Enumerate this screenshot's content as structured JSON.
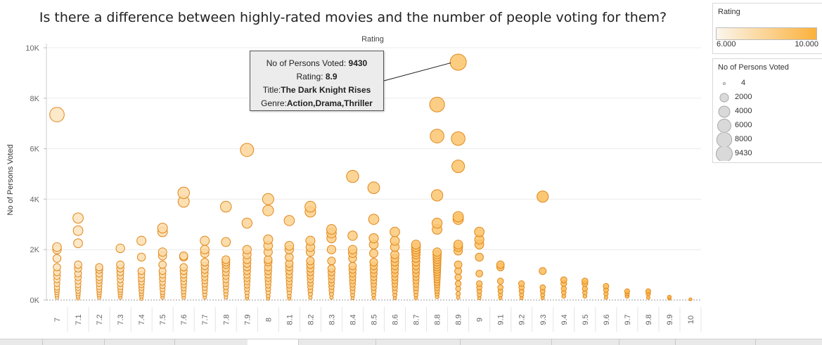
{
  "chart_data": {
    "type": "scatter",
    "title": "Is there a difference between highly-rated movies and the number of people voting for them?",
    "column_header": "Rating",
    "ylabel": "No of Persons Voted",
    "ylim": [
      0,
      10000
    ],
    "yticks": [
      "0K",
      "2K",
      "4K",
      "6K",
      "8K",
      "10K"
    ],
    "ytick_values": [
      0,
      2000,
      4000,
      6000,
      8000,
      10000
    ],
    "categories": [
      "7",
      "7.1",
      "7.2",
      "7.3",
      "7.4",
      "7.5",
      "7.6",
      "7.7",
      "7.8",
      "7.9",
      "8",
      "8.1",
      "8.2",
      "8.3",
      "8.4",
      "8.5",
      "8.6",
      "8.7",
      "8.8",
      "8.9",
      "9",
      "9.1",
      "9.2",
      "9.3",
      "9.4",
      "9.5",
      "9.6",
      "9.7",
      "9.8",
      "9.9",
      "10"
    ],
    "marks": [
      {
        "rating": "7",
        "votes": [
          7350,
          2100,
          2000,
          1650,
          1300,
          1100,
          950,
          800,
          650,
          500,
          400,
          300,
          200,
          100
        ]
      },
      {
        "rating": "7.1",
        "votes": [
          3250,
          2750,
          2250,
          1400,
          1250,
          1050,
          900,
          750,
          600,
          480,
          360,
          250,
          150,
          60
        ]
      },
      {
        "rating": "7.2",
        "votes": [
          1300,
          1200,
          1050,
          900,
          780,
          650,
          520,
          400,
          300,
          200,
          100
        ]
      },
      {
        "rating": "7.3",
        "votes": [
          2050,
          1400,
          1250,
          1100,
          950,
          800,
          650,
          520,
          400,
          300,
          200,
          100
        ]
      },
      {
        "rating": "7.4",
        "votes": [
          2350,
          1700,
          1150,
          1000,
          850,
          720,
          600,
          480,
          360,
          250,
          150,
          50
        ]
      },
      {
        "rating": "7.5",
        "votes": [
          2850,
          2700,
          1900,
          1750,
          1400,
          1150,
          1000,
          850,
          700,
          560,
          430,
          300,
          200,
          100
        ]
      },
      {
        "rating": "7.6",
        "votes": [
          4250,
          3900,
          1750,
          1700,
          1300,
          1150,
          1000,
          860,
          720,
          590,
          460,
          330,
          210,
          100
        ]
      },
      {
        "rating": "7.7",
        "votes": [
          2350,
          2000,
          1850,
          1500,
          1350,
          1200,
          1050,
          900,
          760,
          620,
          480,
          350,
          220,
          100
        ]
      },
      {
        "rating": "7.8",
        "votes": [
          3700,
          2300,
          1600,
          1500,
          1400,
          1250,
          1100,
          950,
          800,
          650,
          510,
          370,
          240,
          110
        ]
      },
      {
        "rating": "7.9",
        "votes": [
          5950,
          3050,
          2000,
          1800,
          1600,
          1450,
          1300,
          1150,
          1000,
          860,
          720,
          580,
          440,
          300,
          160,
          60
        ]
      },
      {
        "rating": "8",
        "votes": [
          4000,
          3550,
          2400,
          2150,
          1900,
          1600,
          1500,
          1300,
          1150,
          1000,
          860,
          720,
          580,
          440,
          300,
          160,
          60
        ]
      },
      {
        "rating": "8.1",
        "votes": [
          3150,
          2150,
          2000,
          1700,
          1450,
          1300,
          1150,
          1000,
          860,
          720,
          580,
          440,
          300,
          160,
          60
        ]
      },
      {
        "rating": "8.2",
        "votes": [
          3700,
          3500,
          2350,
          2100,
          1900,
          1550,
          1400,
          1250,
          1100,
          950,
          800,
          660,
          520,
          380,
          240,
          100
        ]
      },
      {
        "rating": "8.3",
        "votes": [
          2800,
          2650,
          2450,
          2000,
          1550,
          1250,
          1100,
          950,
          800,
          660,
          520,
          380,
          240,
          100
        ]
      },
      {
        "rating": "8.4",
        "votes": [
          4900,
          2550,
          2000,
          1850,
          1650,
          1350,
          1200,
          1050,
          900,
          760,
          620,
          480,
          340,
          200,
          80
        ]
      },
      {
        "rating": "8.5",
        "votes": [
          4450,
          3200,
          2450,
          2200,
          1850,
          1500,
          1350,
          1200,
          1050,
          900,
          760,
          620,
          480,
          340,
          200,
          80
        ]
      },
      {
        "rating": "8.6",
        "votes": [
          2700,
          2350,
          2100,
          1800,
          1650,
          1500,
          1350,
          1200,
          1050,
          900,
          760,
          620,
          480,
          340,
          200,
          80
        ]
      },
      {
        "rating": "8.7",
        "votes": [
          2200,
          2100,
          2000,
          1900,
          1800,
          1650,
          1500,
          1350,
          1200,
          1050,
          900,
          760,
          620,
          480,
          340,
          200,
          80
        ]
      },
      {
        "rating": "8.8",
        "votes": [
          7750,
          6500,
          4150,
          3050,
          2800,
          1900,
          1800,
          1700,
          1600,
          1500,
          1400,
          1300,
          1200,
          1100,
          1000,
          900,
          800,
          700,
          600,
          480,
          360,
          250,
          130
        ]
      },
      {
        "rating": "8.9",
        "votes": [
          9430,
          6400,
          5300,
          3300,
          3200,
          2200,
          2100,
          1950,
          1400,
          1150,
          900,
          650,
          450,
          250,
          100
        ]
      },
      {
        "rating": "9",
        "votes": [
          2700,
          2400,
          2200,
          1700,
          1050,
          650,
          500,
          350,
          200,
          80
        ]
      },
      {
        "rating": "9.1",
        "votes": [
          1400,
          1300,
          750,
          500,
          350,
          200,
          80
        ]
      },
      {
        "rating": "9.2",
        "votes": [
          650,
          500,
          350,
          200,
          80
        ]
      },
      {
        "rating": "9.3",
        "votes": [
          4100,
          1150,
          500,
          350,
          200,
          80
        ]
      },
      {
        "rating": "9.4",
        "votes": [
          800,
          650,
          450,
          300,
          150
        ]
      },
      {
        "rating": "9.5",
        "votes": [
          750,
          650,
          450,
          300,
          150
        ]
      },
      {
        "rating": "9.6",
        "votes": [
          550,
          400,
          250,
          100
        ]
      },
      {
        "rating": "9.7",
        "votes": [
          350,
          250,
          150
        ]
      },
      {
        "rating": "9.8",
        "votes": [
          350,
          250,
          100
        ]
      },
      {
        "rating": "9.9",
        "votes": [
          120,
          60
        ]
      },
      {
        "rating": "10",
        "votes": [
          30
        ]
      }
    ],
    "color_legend": {
      "title": "Rating",
      "min_label": "6.000",
      "max_label": "10.000",
      "min_color": "#fbf6ee",
      "max_color": "#fbb13a"
    },
    "size_legend": {
      "title": "No of Persons Voted",
      "entries": [
        "4",
        "2000",
        "4000",
        "6000",
        "8000",
        "9430"
      ],
      "values": [
        4,
        2000,
        4000,
        6000,
        8000,
        9430
      ]
    },
    "tooltip": {
      "votes_label": "No of Persons Voted:",
      "votes_value": "9430",
      "rating_label": "Rating:",
      "rating_value": "8.9",
      "title_label": "Title:",
      "title_value": "The Dark Knight Rises",
      "genre_label": "Genre:",
      "genre_value": "Action,Drama,Thriller",
      "target_rating": "8.9",
      "target_votes": 9430
    },
    "grid": true,
    "legend_position": "right"
  }
}
